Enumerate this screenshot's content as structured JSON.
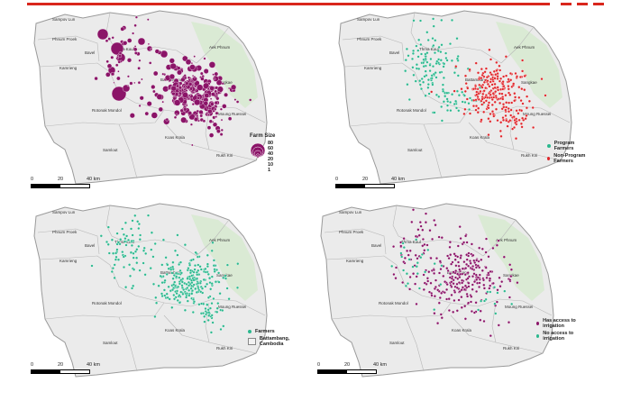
{
  "colors": {
    "header_line": "#d9261c",
    "purple": "#8b1468",
    "teal": "#2bb88e",
    "red": "#e0262b",
    "land": "#ebebeb",
    "green_area": "#d8ead2",
    "border": "#9a9a9a"
  },
  "districts": [
    "Sampov Lun",
    "Phnum Proek",
    "Kamrieng",
    "Bavel",
    "Thma Koul",
    "Aek Phnum",
    "Sangkae",
    "Battambang",
    "Moung Ruessei",
    "Rotonak Mondol",
    "Koas Krala",
    "Samlout",
    "Rukh Kiri"
  ],
  "scale": {
    "labels": [
      "0",
      "20",
      "40 km"
    ]
  },
  "maps": [
    {
      "id": "farm-size",
      "legend": {
        "title": "Farm Size",
        "items": [
          "80",
          "60",
          "40",
          "20",
          "10",
          "1"
        ]
      }
    },
    {
      "id": "program",
      "legend": {
        "items": [
          {
            "label": "Program Farmers",
            "color": "#2bb88e"
          },
          {
            "label": "Non-Program Farmers",
            "color": "#e0262b"
          }
        ]
      }
    },
    {
      "id": "farmers",
      "legend": {
        "items": [
          {
            "label": "Farmers",
            "type": "dot",
            "color": "#2bb88e"
          },
          {
            "label": "Battambang, Cambodia",
            "type": "area"
          }
        ]
      }
    },
    {
      "id": "irrigation",
      "legend": {
        "items": [
          {
            "label": "Has access to irrigation",
            "color": "#8b1468"
          },
          {
            "label": "No access to irrigation",
            "color": "#2bb88e"
          }
        ]
      }
    }
  ]
}
